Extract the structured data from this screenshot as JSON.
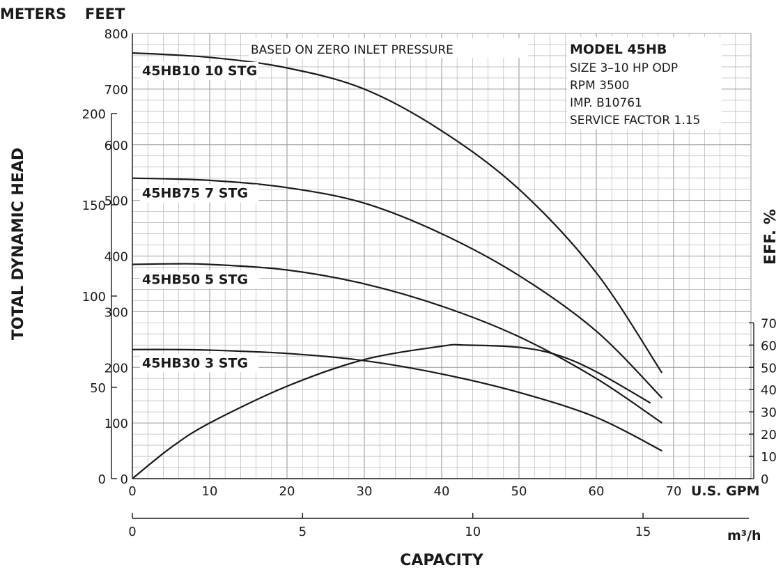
{
  "chart_data": {
    "type": "line",
    "title": "",
    "corner_labels": {
      "left": "METERS",
      "right": "FEET"
    },
    "ylabel": "TOTAL DYNAMIC HEAD",
    "y2label": "EFF. %",
    "xlabel": "CAPACITY",
    "x_unit_gpm": "U.S. GPM",
    "x_unit_m3h": "m³/h",
    "note": "BASED ON ZERO INLET PRESSURE",
    "info": {
      "model": "MODEL 45HB",
      "lines": [
        "SIZE 3–10 HP ODP",
        "RPM 3500",
        "IMP. B10761",
        "SERVICE FACTOR 1.15"
      ]
    },
    "x_gpm_range": [
      0,
      80
    ],
    "x_gpm_ticks": [
      "0",
      "10",
      "20",
      "30",
      "40",
      "50",
      "60",
      "70"
    ],
    "x_m3h_ticks": [
      "0",
      "5",
      "10",
      "15"
    ],
    "y_feet_range": [
      0,
      800
    ],
    "y_feet_ticks": [
      "0",
      "100",
      "200",
      "300",
      "400",
      "500",
      "600",
      "700",
      "800"
    ],
    "y_meters_ticks": [
      "0",
      "50",
      "100",
      "150",
      "200"
    ],
    "y_eff_range": [
      0,
      70
    ],
    "y_eff_ticks": [
      "0",
      "10",
      "20",
      "30",
      "40",
      "50",
      "60",
      "70"
    ],
    "grid": true,
    "series": [
      {
        "name": "45HB10  10 STG",
        "axis": "feet",
        "x": [
          0,
          10,
          20,
          30,
          40,
          50,
          60,
          68.5
        ],
        "y": [
          765,
          757,
          738,
          700,
          625,
          520,
          370,
          190
        ]
      },
      {
        "name": "45HB75  7 STG",
        "axis": "feet",
        "x": [
          0,
          10,
          20,
          30,
          40,
          50,
          60,
          68.5
        ],
        "y": [
          540,
          536,
          523,
          495,
          440,
          365,
          265,
          145
        ]
      },
      {
        "name": "45HB50  5 STG",
        "axis": "feet",
        "x": [
          0,
          5,
          10,
          20,
          30,
          40,
          50,
          60,
          68.5
        ],
        "y": [
          385,
          386,
          385,
          375,
          350,
          310,
          255,
          180,
          100
        ]
      },
      {
        "name": "45HB30  3 STG",
        "axis": "feet",
        "x": [
          0,
          5,
          10,
          20,
          30,
          40,
          50,
          60,
          68.5
        ],
        "y": [
          232,
          232,
          231,
          225,
          212,
          188,
          155,
          110,
          50
        ]
      },
      {
        "name": "",
        "axis": "eff",
        "x": [
          0,
          5,
          10,
          20,
          30,
          40,
          43,
          50,
          55,
          60,
          67
        ],
        "y": [
          0,
          14,
          25,
          41.5,
          53.5,
          59.5,
          60,
          59,
          55.5,
          48,
          34
        ]
      }
    ]
  }
}
